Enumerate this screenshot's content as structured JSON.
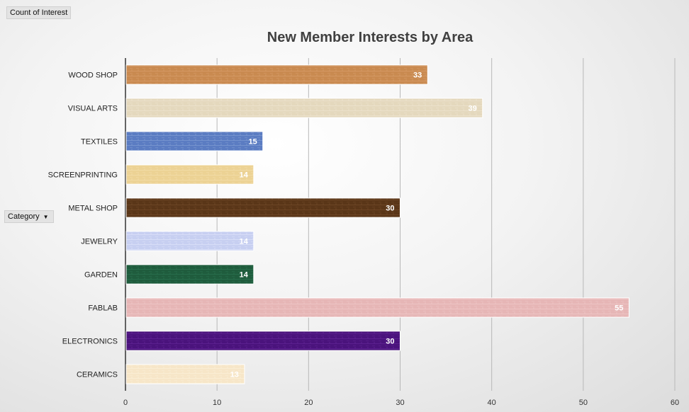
{
  "pivot": {
    "values_field": "Count of Interest",
    "axis_field": "Category",
    "dropdown_icon": "chevron-down-icon"
  },
  "chart_data": {
    "type": "bar",
    "orientation": "horizontal",
    "title": "New Member Interests by Area",
    "xlabel": "",
    "ylabel": "",
    "categories": [
      "WOOD SHOP",
      "VISUAL ARTS",
      "TEXTILES",
      "SCREENPRINTING",
      "METAL SHOP",
      "JEWELRY",
      "GARDEN",
      "FABLAB",
      "ELECTRONICS",
      "CERAMICS"
    ],
    "values": [
      33,
      39,
      15,
      14,
      30,
      14,
      14,
      55,
      30,
      13
    ],
    "xlim": [
      0,
      60
    ],
    "xticks": [
      0,
      10,
      20,
      30,
      40,
      50,
      60
    ],
    "grid": "vertical",
    "legend": "none",
    "bar_colors": [
      "#c98a50",
      "#e4d8bd",
      "#5b7cc2",
      "#ecd294",
      "#5a3618",
      "#c7cff1",
      "#1f5c3d",
      "#e6b6b6",
      "#4a137c",
      "#f7e6c8"
    ],
    "bar_colors_light": [
      "#dca372",
      "#f0e8d6",
      "#8aa5d8",
      "#f5e2b2",
      "#7a5230",
      "#e3e8fb",
      "#2e7a55",
      "#f1cdcd",
      "#6a2a9e",
      "#fcf1de"
    ]
  }
}
